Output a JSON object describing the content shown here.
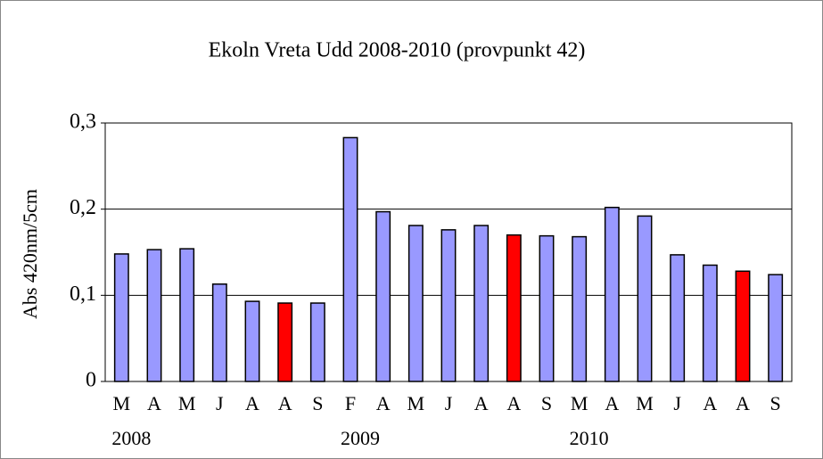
{
  "chart_data": {
    "type": "bar",
    "title": "Ekoln Vreta Udd 2008-2010 (provpunkt 42)",
    "y_label": "Abs 420nm/5cm",
    "categories": [
      "M",
      "A",
      "M",
      "J",
      "A",
      "A",
      "S",
      "F",
      "A",
      "M",
      "J",
      "A",
      "A",
      "S",
      "M",
      "A",
      "M",
      "J",
      "A",
      "A",
      "S"
    ],
    "groups": [
      "2008",
      "2009",
      "2010"
    ],
    "values": [
      0.148,
      0.153,
      0.154,
      0.113,
      0.093,
      0.091,
      0.091,
      0.283,
      0.197,
      0.181,
      0.176,
      0.181,
      0.17,
      0.169,
      0.168,
      0.202,
      0.192,
      0.147,
      0.135,
      0.128,
      0.124
    ],
    "colors": [
      "#9999ff",
      "#9999ff",
      "#9999ff",
      "#9999ff",
      "#9999ff",
      "#ff0000",
      "#9999ff",
      "#9999ff",
      "#9999ff",
      "#9999ff",
      "#9999ff",
      "#9999ff",
      "#ff0000",
      "#9999ff",
      "#9999ff",
      "#9999ff",
      "#9999ff",
      "#9999ff",
      "#9999ff",
      "#ff0000",
      "#9999ff"
    ],
    "ylim": [
      0,
      0.3
    ],
    "yticks": [
      {
        "value": 0,
        "label": "0"
      },
      {
        "value": 0.1,
        "label": "0,1"
      },
      {
        "value": 0.2,
        "label": "0,2"
      },
      {
        "value": 0.3,
        "label": "0,3"
      }
    ],
    "grid": true
  }
}
